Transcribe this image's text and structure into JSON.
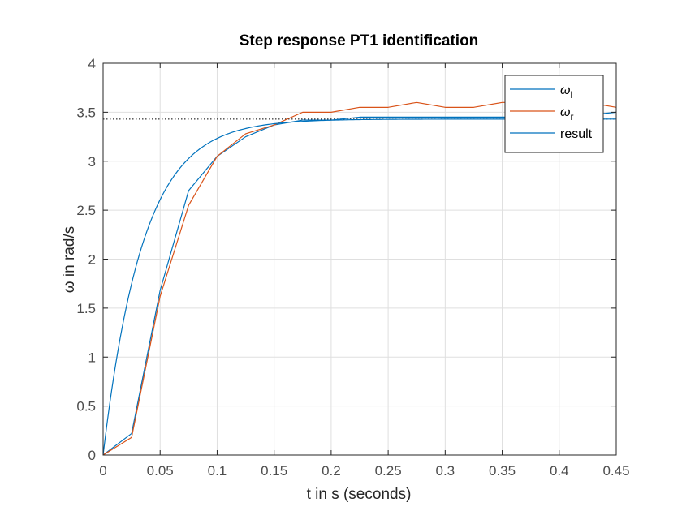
{
  "chart_data": {
    "type": "line",
    "title": "Step response PT1 identification",
    "xlabel": "t in s (seconds)",
    "ylabel": "ω in rad/s",
    "xlim": [
      0,
      0.45
    ],
    "ylim": [
      0,
      4
    ],
    "xticks": [
      0,
      0.05,
      0.1,
      0.15,
      0.2,
      0.25,
      0.3,
      0.35,
      0.4,
      0.45
    ],
    "yticks": [
      0,
      0.5,
      1,
      1.5,
      2,
      2.5,
      3,
      3.5,
      4
    ],
    "xtick_labels": [
      "0",
      "0.05",
      "0.1",
      "0.15",
      "0.2",
      "0.25",
      "0.3",
      "0.35",
      "0.4",
      "0.45"
    ],
    "ytick_labels": [
      "0",
      "0.5",
      "1",
      "1.5",
      "2",
      "2.5",
      "3",
      "3.5",
      "4"
    ],
    "grid": true,
    "legend_position": "top-right",
    "series": [
      {
        "name": "ω_l",
        "legend_main": "ω",
        "legend_sub": "l",
        "color": "#0072BD",
        "style": "solid",
        "x": [
          0,
          0.025,
          0.05,
          0.075,
          0.1,
          0.125,
          0.15,
          0.175,
          0.2,
          0.225,
          0.25,
          0.275,
          0.3,
          0.325,
          0.35,
          0.375,
          0.4,
          0.425,
          0.45
        ],
        "y": [
          0,
          0.22,
          1.68,
          2.7,
          3.05,
          3.25,
          3.37,
          3.42,
          3.42,
          3.45,
          3.45,
          3.45,
          3.45,
          3.45,
          3.45,
          3.45,
          3.45,
          3.47,
          3.5
        ]
      },
      {
        "name": "ω_r",
        "legend_main": "ω",
        "legend_sub": "r",
        "color": "#D95319",
        "style": "solid",
        "x": [
          0,
          0.025,
          0.05,
          0.075,
          0.1,
          0.125,
          0.15,
          0.175,
          0.2,
          0.225,
          0.25,
          0.275,
          0.3,
          0.325,
          0.35,
          0.375,
          0.4,
          0.425,
          0.45
        ],
        "y": [
          0,
          0.18,
          1.62,
          2.55,
          3.05,
          3.28,
          3.37,
          3.5,
          3.5,
          3.55,
          3.55,
          3.6,
          3.55,
          3.55,
          3.6,
          3.6,
          3.6,
          3.6,
          3.55
        ]
      },
      {
        "name": "result",
        "legend_main": "result",
        "legend_sub": "",
        "color": "#0072BD",
        "style": "smooth",
        "model": "pt1",
        "gain": 3.43,
        "time_constant": 0.035
      }
    ],
    "reference_line": {
      "y": 3.43,
      "style": "dotted",
      "color": "#000000"
    }
  }
}
